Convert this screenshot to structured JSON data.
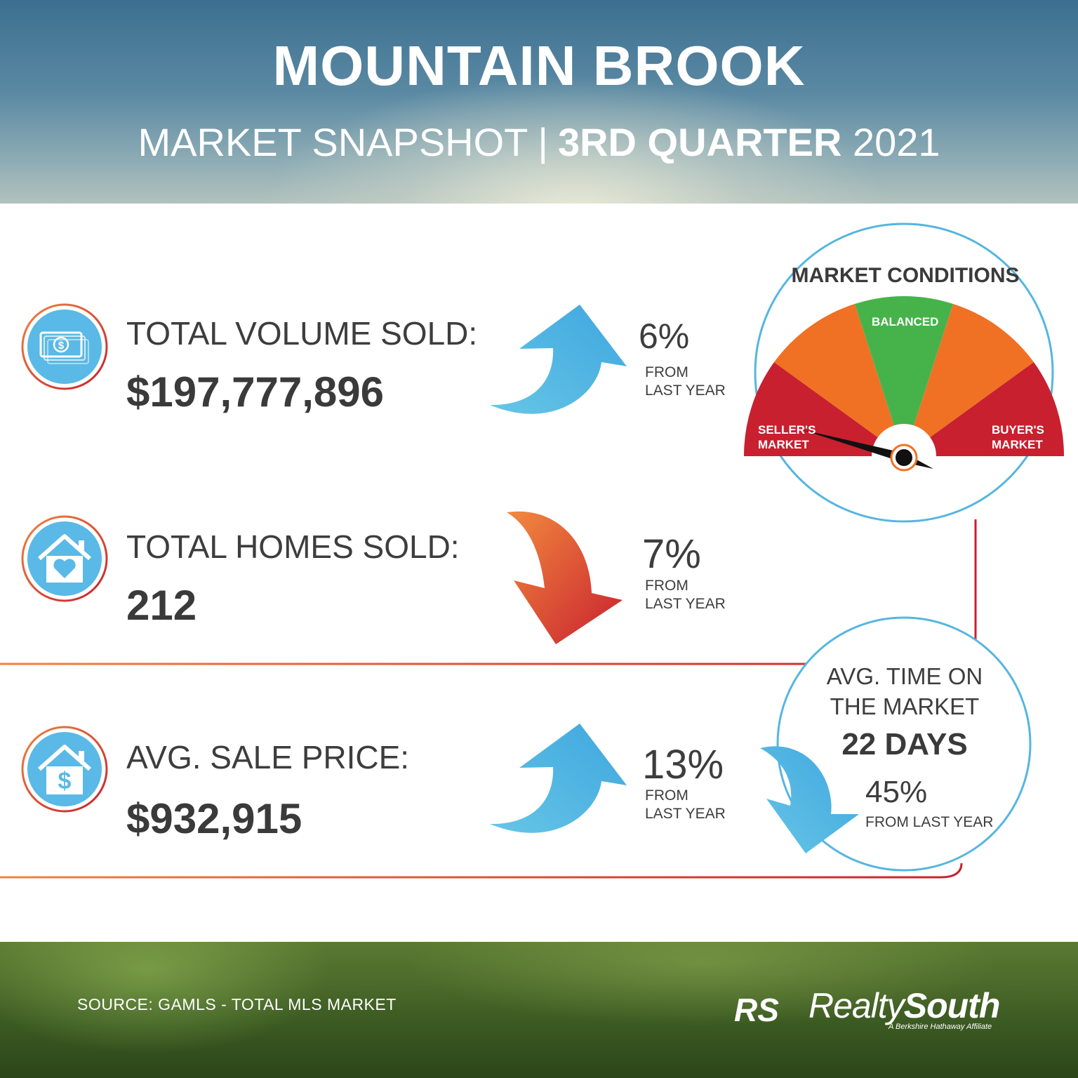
{
  "header": {
    "title": "MOUNTAIN BROOK",
    "subtitle_prefix": "MARKET SNAPSHOT",
    "subtitle_separator": "|",
    "subtitle_bold": "3RD QUARTER",
    "subtitle_year": "2021"
  },
  "stats": [
    {
      "label": "TOTAL VOLUME SOLD:",
      "value": "$197,777,896",
      "change": "6%",
      "direction": "up",
      "from1": "FROM",
      "from2": "LAST YEAR",
      "icon": "money-icon"
    },
    {
      "label": "TOTAL HOMES SOLD:",
      "value": "212",
      "change": "7%",
      "direction": "down",
      "from1": "FROM",
      "from2": "LAST YEAR",
      "icon": "house-heart-icon"
    },
    {
      "label": "AVG. SALE PRICE:",
      "value": "$932,915",
      "change": "13%",
      "direction": "up",
      "from1": "FROM",
      "from2": "LAST YEAR",
      "icon": "house-dollar-icon"
    }
  ],
  "gauge": {
    "title": "MARKET CONDITIONS",
    "balanced": "BALANCED",
    "sellers_1": "SELLER'S",
    "sellers_2": "MARKET",
    "buyers_1": "BUYER'S",
    "buyers_2": "MARKET",
    "segment_colors": [
      "#c8202f",
      "#f07124",
      "#46b34a",
      "#f07124",
      "#c8202f"
    ],
    "needle_position": "seller's market"
  },
  "days_on_market": {
    "title_1": "AVG. TIME ON",
    "title_2": "THE MARKET",
    "value": "22 DAYS",
    "change": "45%",
    "direction": "down",
    "from": "FROM LAST YEAR"
  },
  "footer": {
    "source": "SOURCE: GAMLS - TOTAL MLS MARKET",
    "brand_regular": "Realty",
    "brand_bold": "South",
    "brand_tagline": "A Berkshire Hathaway Affiliate",
    "monogram": "RS",
    "equal_housing_icon": "equal-housing-icon"
  },
  "colors": {
    "arrow_up": "#4fb5e3",
    "arrow_down_start": "#f0843e",
    "arrow_down_end": "#c8202f",
    "icon_circle": "#5ab9e6",
    "divider_start": "#f0843e",
    "divider_end": "#c8202f"
  }
}
